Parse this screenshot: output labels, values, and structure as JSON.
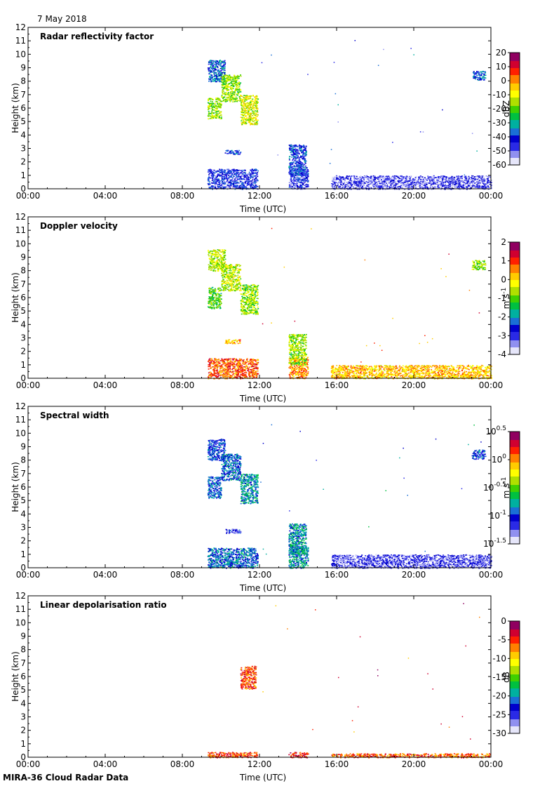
{
  "header": {
    "date": "7 May 2018"
  },
  "footer": {
    "instrument": "MIRA-36 Cloud Radar Data"
  },
  "colors": {
    "axis": "#000000",
    "background": "#ffffff",
    "colormap": [
      "#e6e6fa",
      "#9090f0",
      "#2a2ae6",
      "#0000cc",
      "#1a6fd6",
      "#00b0a0",
      "#00c040",
      "#40d000",
      "#b0e000",
      "#ffff00",
      "#ffcc00",
      "#ff8000",
      "#ff2000",
      "#d00030",
      "#900060"
    ]
  },
  "chart_data": [
    {
      "type": "heatmap",
      "title": "Radar reflectivity factor",
      "xlabel": "Time (UTC)",
      "ylabel": "Height (km)",
      "xlim": [
        0,
        24
      ],
      "ylim": [
        0,
        12
      ],
      "xticks": [
        0,
        4,
        8,
        12,
        16,
        20,
        24
      ],
      "xticklabels": [
        "00:00",
        "04:00",
        "08:00",
        "12:00",
        "16:00",
        "20:00",
        "00:00"
      ],
      "yticks": [
        0,
        1,
        2,
        3,
        4,
        5,
        6,
        7,
        8,
        9,
        10,
        11,
        12
      ],
      "yticklabels": [
        "0",
        "1",
        "2",
        "3",
        "4",
        "5",
        "6",
        "7",
        "8",
        "9",
        "10",
        "11",
        "12"
      ],
      "colorbar": {
        "label": "dBZ",
        "range": [
          -60,
          20
        ],
        "ticks": [
          20,
          10,
          0,
          -10,
          -20,
          -30,
          -40,
          -50,
          -60
        ],
        "ticklabels": [
          "20",
          "10",
          "0",
          "-10",
          "-20",
          "-30",
          "-40",
          "-50",
          "-60"
        ]
      },
      "echoes": [
        {
          "t0": 9.3,
          "t1": 11.9,
          "h0": 0,
          "h1": 1.5,
          "level": 0.22
        },
        {
          "t0": 13.5,
          "t1": 14.5,
          "h0": 0,
          "h1": 1.6,
          "level": 0.2
        },
        {
          "t0": 15.7,
          "t1": 24,
          "h0": 0,
          "h1": 1.0,
          "level": 0.15
        },
        {
          "t0": 13.5,
          "t1": 14.4,
          "h0": 1.0,
          "h1": 3.3,
          "level": 0.25
        },
        {
          "t0": 10.2,
          "t1": 11.0,
          "h0": 2.6,
          "h1": 2.9,
          "level": 0.25
        },
        {
          "t0": 9.3,
          "t1": 10.2,
          "h0": 8.0,
          "h1": 9.6,
          "level": 0.3
        },
        {
          "t0": 9.3,
          "t1": 10.0,
          "h0": 5.2,
          "h1": 6.8,
          "level": 0.55
        },
        {
          "t0": 10.0,
          "t1": 11.0,
          "h0": 6.5,
          "h1": 8.5,
          "level": 0.55
        },
        {
          "t0": 11.0,
          "t1": 11.9,
          "h0": 4.8,
          "h1": 7.0,
          "level": 0.6
        },
        {
          "t0": 23.0,
          "t1": 23.7,
          "h0": 8.1,
          "h1": 8.8,
          "level": 0.3
        }
      ]
    },
    {
      "type": "heatmap",
      "title": "Doppler velocity",
      "xlabel": "Time (UTC)",
      "ylabel": "Height (km)",
      "xlim": [
        0,
        24
      ],
      "ylim": [
        0,
        12
      ],
      "xticks": [
        0,
        4,
        8,
        12,
        16,
        20,
        24
      ],
      "xticklabels": [
        "00:00",
        "04:00",
        "08:00",
        "12:00",
        "16:00",
        "20:00",
        "00:00"
      ],
      "yticks": [
        0,
        1,
        2,
        3,
        4,
        5,
        6,
        7,
        8,
        9,
        10,
        11,
        12
      ],
      "yticklabels": [
        "0",
        "1",
        "2",
        "3",
        "4",
        "5",
        "6",
        "7",
        "8",
        "9",
        "10",
        "11",
        "12"
      ],
      "colorbar": {
        "label": "m s",
        "label_sup": "-1",
        "range": [
          -4,
          2
        ],
        "ticks": [
          2,
          1,
          0,
          -1,
          -2,
          -3,
          -4
        ],
        "ticklabels": [
          "2",
          "1",
          "0",
          "-1",
          "-2",
          "-3",
          "-4"
        ]
      },
      "echoes": [
        {
          "t0": 9.3,
          "t1": 11.9,
          "h0": 0,
          "h1": 1.5,
          "level": 0.8
        },
        {
          "t0": 13.5,
          "t1": 14.5,
          "h0": 0,
          "h1": 1.6,
          "level": 0.75
        },
        {
          "t0": 15.7,
          "t1": 24,
          "h0": 0,
          "h1": 1.0,
          "level": 0.7
        },
        {
          "t0": 13.5,
          "t1": 14.4,
          "h0": 1.0,
          "h1": 3.3,
          "level": 0.55
        },
        {
          "t0": 10.2,
          "t1": 11.0,
          "h0": 2.6,
          "h1": 2.9,
          "level": 0.7
        },
        {
          "t0": 9.3,
          "t1": 10.2,
          "h0": 8.0,
          "h1": 9.6,
          "level": 0.58
        },
        {
          "t0": 9.3,
          "t1": 10.0,
          "h0": 5.2,
          "h1": 6.8,
          "level": 0.5
        },
        {
          "t0": 10.0,
          "t1": 11.0,
          "h0": 6.5,
          "h1": 8.5,
          "level": 0.58
        },
        {
          "t0": 11.0,
          "t1": 11.9,
          "h0": 4.8,
          "h1": 7.0,
          "level": 0.55
        },
        {
          "t0": 23.0,
          "t1": 23.7,
          "h0": 8.1,
          "h1": 8.8,
          "level": 0.55
        }
      ]
    },
    {
      "type": "heatmap",
      "title": "Spectral width",
      "xlabel": "Time (UTC)",
      "ylabel": "Height (km)",
      "xlim": [
        0,
        24
      ],
      "ylim": [
        0,
        12
      ],
      "xticks": [
        0,
        4,
        8,
        12,
        16,
        20,
        24
      ],
      "xticklabels": [
        "00:00",
        "04:00",
        "08:00",
        "12:00",
        "16:00",
        "20:00",
        "00:00"
      ],
      "yticks": [
        0,
        1,
        2,
        3,
        4,
        5,
        6,
        7,
        8,
        9,
        10,
        11,
        12
      ],
      "yticklabels": [
        "0",
        "1",
        "2",
        "3",
        "4",
        "5",
        "6",
        "7",
        "8",
        "9",
        "10",
        "11",
        "12"
      ],
      "colorbar": {
        "label": "m s",
        "label_sup": "-1",
        "range": [
          -1.5,
          0.5
        ],
        "ticks": [
          0.5,
          0,
          -0.5,
          -1,
          -1.5
        ],
        "ticklabels": [
          "0.5",
          "0",
          "-0.5",
          "-1",
          "-1.5"
        ],
        "tick_base": "10",
        "log_scale": true
      },
      "echoes": [
        {
          "t0": 9.3,
          "t1": 11.9,
          "h0": 0,
          "h1": 1.5,
          "level": 0.3
        },
        {
          "t0": 13.5,
          "t1": 14.5,
          "h0": 0,
          "h1": 1.6,
          "level": 0.35
        },
        {
          "t0": 15.7,
          "t1": 24,
          "h0": 0,
          "h1": 1.0,
          "level": 0.15
        },
        {
          "t0": 13.5,
          "t1": 14.4,
          "h0": 1.0,
          "h1": 3.3,
          "level": 0.35
        },
        {
          "t0": 10.2,
          "t1": 11.0,
          "h0": 2.6,
          "h1": 2.9,
          "level": 0.2
        },
        {
          "t0": 9.3,
          "t1": 10.2,
          "h0": 8.0,
          "h1": 9.6,
          "level": 0.25
        },
        {
          "t0": 9.3,
          "t1": 10.0,
          "h0": 5.2,
          "h1": 6.8,
          "level": 0.28
        },
        {
          "t0": 10.0,
          "t1": 11.0,
          "h0": 6.5,
          "h1": 8.5,
          "level": 0.3
        },
        {
          "t0": 11.0,
          "t1": 11.9,
          "h0": 4.8,
          "h1": 7.0,
          "level": 0.35
        },
        {
          "t0": 23.0,
          "t1": 23.7,
          "h0": 8.1,
          "h1": 8.8,
          "level": 0.25
        }
      ]
    },
    {
      "type": "heatmap",
      "title": "Linear depolarisation ratio",
      "xlabel": "Time (UTC)",
      "ylabel": "Height (km)",
      "xlim": [
        0,
        24
      ],
      "ylim": [
        0,
        12
      ],
      "xticks": [
        0,
        4,
        8,
        12,
        16,
        20,
        24
      ],
      "xticklabels": [
        "00:00",
        "04:00",
        "08:00",
        "12:00",
        "16:00",
        "20:00",
        "00:00"
      ],
      "yticks": [
        0,
        1,
        2,
        3,
        4,
        5,
        6,
        7,
        8,
        9,
        10,
        11,
        12
      ],
      "yticklabels": [
        "0",
        "1",
        "2",
        "3",
        "4",
        "5",
        "6",
        "7",
        "8",
        "9",
        "10",
        "11",
        "12"
      ],
      "colorbar": {
        "label": "dB",
        "range": [
          -30,
          0
        ],
        "ticks": [
          0,
          -5,
          -10,
          -15,
          -20,
          -25,
          -30
        ],
        "ticklabels": [
          "0",
          "-5",
          "-10",
          "-15",
          "-20",
          "-25",
          "-30"
        ]
      },
      "echoes": [
        {
          "t0": 9.3,
          "t1": 11.9,
          "h0": 0,
          "h1": 0.4,
          "level": 0.82
        },
        {
          "t0": 13.5,
          "t1": 14.5,
          "h0": 0,
          "h1": 0.4,
          "level": 0.85
        },
        {
          "t0": 15.7,
          "t1": 24,
          "h0": 0,
          "h1": 0.3,
          "level": 0.8
        },
        {
          "t0": 11.0,
          "t1": 11.8,
          "h0": 5.1,
          "h1": 6.8,
          "level": 0.8
        }
      ]
    }
  ]
}
